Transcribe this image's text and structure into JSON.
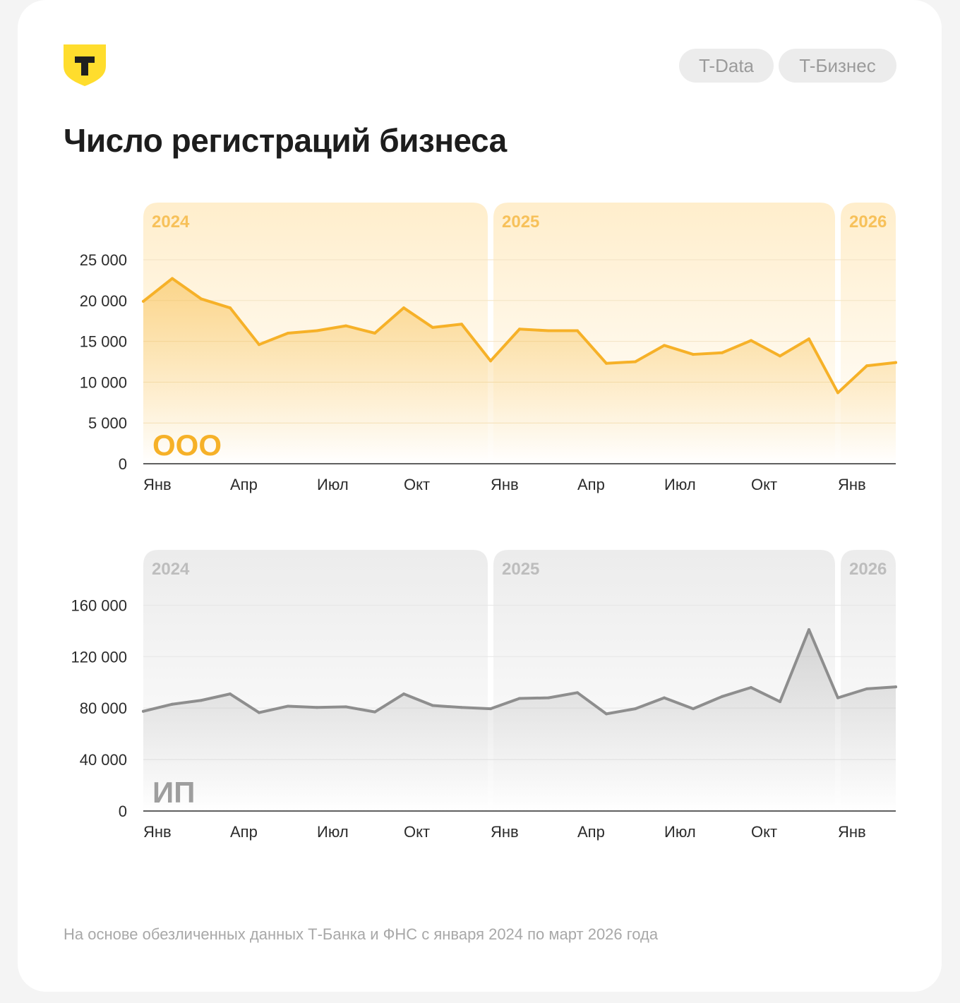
{
  "header": {
    "tags": [
      "T-Data",
      "T-Бизнес"
    ],
    "title": "Число регистраций бизнеса"
  },
  "logo": {
    "letter": "Т",
    "color": "#ffdd2d",
    "icon": "t-bank-shield-icon"
  },
  "footnote": "На основе обезличенных данных Т-Банка и ФНС с января 2024 по март 2026 года",
  "chart_data": [
    {
      "type": "area",
      "series_label": "ООО",
      "accent": "#f6b128",
      "years": [
        {
          "label": "2024",
          "from": 0,
          "to": 12
        },
        {
          "label": "2025",
          "from": 12,
          "to": 24
        },
        {
          "label": "2026",
          "from": 24,
          "to": 26
        }
      ],
      "x_ticks": [
        {
          "i": 0,
          "label": "Янв"
        },
        {
          "i": 3,
          "label": "Апр"
        },
        {
          "i": 6,
          "label": "Июл"
        },
        {
          "i": 9,
          "label": "Окт"
        },
        {
          "i": 12,
          "label": "Янв"
        },
        {
          "i": 15,
          "label": "Апр"
        },
        {
          "i": 18,
          "label": "Июл"
        },
        {
          "i": 21,
          "label": "Окт"
        },
        {
          "i": 24,
          "label": "Янв"
        }
      ],
      "y_ticks": [
        {
          "v": 0,
          "label": "0"
        },
        {
          "v": 5000,
          "label": "5 000"
        },
        {
          "v": 10000,
          "label": "10 000"
        },
        {
          "v": 15000,
          "label": "15 000"
        },
        {
          "v": 20000,
          "label": "20 000"
        },
        {
          "v": 25000,
          "label": "25 000"
        }
      ],
      "ylim": [
        0,
        32000
      ],
      "values": [
        19900,
        22700,
        20200,
        19100,
        14600,
        16000,
        16300,
        16900,
        16000,
        19100,
        16700,
        17100,
        12600,
        16500,
        16300,
        16300,
        12300,
        12500,
        14500,
        13400,
        13600,
        15100,
        13200,
        15300,
        8700,
        12000,
        12400
      ]
    },
    {
      "type": "area",
      "series_label": "ИП",
      "accent": "#8e8e8e",
      "years": [
        {
          "label": "2024",
          "from": 0,
          "to": 12
        },
        {
          "label": "2025",
          "from": 12,
          "to": 24
        },
        {
          "label": "2026",
          "from": 24,
          "to": 26
        }
      ],
      "x_ticks": [
        {
          "i": 0,
          "label": "Янв"
        },
        {
          "i": 3,
          "label": "Апр"
        },
        {
          "i": 6,
          "label": "Июл"
        },
        {
          "i": 9,
          "label": "Окт"
        },
        {
          "i": 12,
          "label": "Янв"
        },
        {
          "i": 15,
          "label": "Апр"
        },
        {
          "i": 18,
          "label": "Июл"
        },
        {
          "i": 21,
          "label": "Окт"
        },
        {
          "i": 24,
          "label": "Янв"
        }
      ],
      "y_ticks": [
        {
          "v": 0,
          "label": "0"
        },
        {
          "v": 40000,
          "label": "40 000"
        },
        {
          "v": 80000,
          "label": "80 000"
        },
        {
          "v": 120000,
          "label": "120 000"
        },
        {
          "v": 160000,
          "label": "160 000"
        }
      ],
      "ylim": [
        0,
        203000
      ],
      "values": [
        77500,
        83000,
        86000,
        91000,
        76500,
        81500,
        80500,
        81000,
        77000,
        91000,
        82000,
        80500,
        79500,
        87500,
        88000,
        92000,
        75500,
        79500,
        88000,
        79500,
        89000,
        96000,
        85000,
        141000,
        88000,
        95000,
        96500
      ]
    }
  ]
}
